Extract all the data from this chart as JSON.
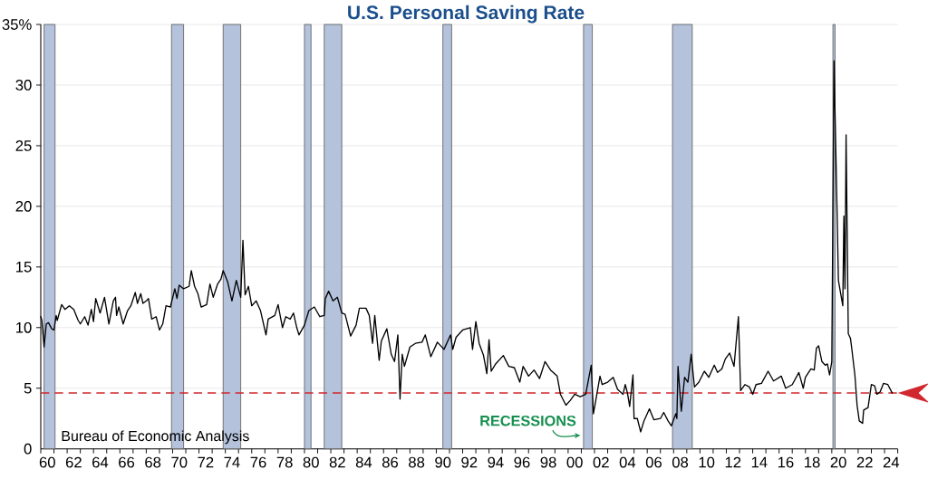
{
  "chart_data": {
    "type": "line",
    "title": "U.S. Personal Saving Rate",
    "x": [
      "1960-01",
      "1960-02",
      "1960-04",
      "1960-06",
      "1960-08",
      "1960-11",
      "1961-01",
      "1961-03",
      "1961-04",
      "1961-08",
      "1961-11",
      "1962-03",
      "1962-07",
      "1962-11",
      "1963-01",
      "1963-05",
      "1963-08",
      "1963-11",
      "1964-01",
      "1964-03",
      "1964-07",
      "1964-11",
      "1965-03",
      "1965-07",
      "1965-09",
      "1965-10",
      "1965-12",
      "1966-04",
      "1966-08",
      "1966-11",
      "1967-03",
      "1967-05",
      "1967-08",
      "1967-10",
      "1968-01",
      "1968-03",
      "1968-06",
      "1968-10",
      "1969-01",
      "1969-04",
      "1969-07",
      "1969-11",
      "1970-03",
      "1970-05",
      "1970-07",
      "1970-11",
      "1971-04",
      "1971-06",
      "1971-09",
      "1971-12",
      "1972-03",
      "1972-08",
      "1972-11",
      "1973-02",
      "1973-06",
      "1973-09",
      "1973-11",
      "1974-03",
      "1974-07",
      "1974-11",
      "1975-03",
      "1975-05",
      "1975-07",
      "1975-10",
      "1976-01",
      "1976-05",
      "1976-09",
      "1977-02",
      "1977-04",
      "1977-10",
      "1978-01",
      "1978-05",
      "1978-08",
      "1978-12",
      "1979-03",
      "1979-06",
      "1979-08",
      "1980-01",
      "1980-05",
      "1980-10",
      "1981-03",
      "1981-07",
      "1981-08",
      "1981-11",
      "1982-03",
      "1982-07",
      "1982-11",
      "1983-02",
      "1983-07",
      "1983-12",
      "1984-03",
      "1984-09",
      "1984-12",
      "1985-03",
      "1985-05",
      "1985-09",
      "1985-11",
      "1986-04",
      "1986-08",
      "1986-11",
      "1987-02",
      "1987-04",
      "1987-06",
      "1987-08",
      "1988-01",
      "1988-06",
      "1988-12",
      "1989-03",
      "1989-08",
      "1990-02",
      "1990-08",
      "1991-02",
      "1991-04",
      "1991-07",
      "1992-01",
      "1992-08",
      "1992-10",
      "1993-01",
      "1993-04",
      "1993-08",
      "1993-11",
      "1994-01",
      "1994-03",
      "1994-07",
      "1995-02",
      "1995-07",
      "1995-12",
      "1996-05",
      "1996-08",
      "1997-01",
      "1997-06",
      "1997-11",
      "1998-04",
      "1998-09",
      "1999-03",
      "1999-06",
      "1999-11",
      "2000-03",
      "2000-07",
      "2000-12",
      "2001-05",
      "2001-10",
      "2001-12",
      "2002-02",
      "2002-06",
      "2002-08",
      "2003-01",
      "2003-06",
      "2003-10",
      "2004-03",
      "2004-05",
      "2004-07",
      "2004-09",
      "2004-12",
      "2005-01",
      "2005-04",
      "2005-07",
      "2005-10",
      "2006-03",
      "2006-07",
      "2007-01",
      "2007-04",
      "2007-08",
      "2007-11",
      "2008-03",
      "2008-04",
      "2008-05",
      "2008-08",
      "2008-11",
      "2009-02",
      "2009-05",
      "2009-08",
      "2009-12",
      "2010-05",
      "2010-09",
      "2011-02",
      "2011-05",
      "2011-09",
      "2011-12",
      "2012-04",
      "2012-08",
      "2012-12",
      "2013-02",
      "2013-06",
      "2013-10",
      "2014-01",
      "2014-04",
      "2014-09",
      "2015-03",
      "2015-08",
      "2016-03",
      "2016-07",
      "2017-01",
      "2017-07",
      "2017-11",
      "2018-01",
      "2018-06",
      "2018-09",
      "2018-11",
      "2019-01",
      "2019-04",
      "2019-07",
      "2019-09",
      "2019-11",
      "2020-01",
      "2020-03",
      "2020-06",
      "2020-07",
      "2020-11",
      "2020-12",
      "2021-01",
      "2021-02",
      "2021-04",
      "2021-06",
      "2021-07",
      "2021-10",
      "2021-12",
      "2022-02",
      "2022-05",
      "2022-06",
      "2022-10",
      "2023-01",
      "2023-04",
      "2023-06",
      "2023-09",
      "2023-12",
      "2024-04",
      "2024-08"
    ],
    "values": [
      10.9,
      10.6,
      8.4,
      10.3,
      10.4,
      9.9,
      9.8,
      11.0,
      10.6,
      11.9,
      11.5,
      11.8,
      11.5,
      10.6,
      10.3,
      10.9,
      10.2,
      11.5,
      10.5,
      12.4,
      11.2,
      12.5,
      10.3,
      12.2,
      12.5,
      11.0,
      11.7,
      10.3,
      11.4,
      11.8,
      12.9,
      12.0,
      12.8,
      12.0,
      12.2,
      12.4,
      10.7,
      10.9,
      9.8,
      10.3,
      11.8,
      11.7,
      13.2,
      12.4,
      13.5,
      13.2,
      13.4,
      14.7,
      13.4,
      12.8,
      11.7,
      11.9,
      13.6,
      12.5,
      13.6,
      14.0,
      14.7,
      13.8,
      12.2,
      13.9,
      12.5,
      17.2,
      12.7,
      13.4,
      11.8,
      12.2,
      11.4,
      9.4,
      10.7,
      11.0,
      11.9,
      10.0,
      10.9,
      10.7,
      11.2,
      10.0,
      9.4,
      10.2,
      11.4,
      11.7,
      10.9,
      11.0,
      12.4,
      13.0,
      12.2,
      12.5,
      11.2,
      11.1,
      9.3,
      10.2,
      11.6,
      11.6,
      11.0,
      8.7,
      11.0,
      7.3,
      8.9,
      9.9,
      7.8,
      7.2,
      9.4,
      4.1,
      7.8,
      6.8,
      8.4,
      8.7,
      8.8,
      9.4,
      7.6,
      8.8,
      8.2,
      9.4,
      8.2,
      9.2,
      9.8,
      10.0,
      8.2,
      10.5,
      8.7,
      7.7,
      6.2,
      9.0,
      6.4,
      7.0,
      7.7,
      6.8,
      6.7,
      5.5,
      6.8,
      6.0,
      6.5,
      5.8,
      7.2,
      6.5,
      6.0,
      4.5,
      3.6,
      4.0,
      4.5,
      4.3,
      4.5,
      6.9,
      2.9,
      3.9,
      6.0,
      5.3,
      5.5,
      5.9,
      4.9,
      4.5,
      5.3,
      4.6,
      3.5,
      6.1,
      2.5,
      2.5,
      1.4,
      2.3,
      3.3,
      2.4,
      2.5,
      3.0,
      2.3,
      1.9,
      2.9,
      2.5,
      6.8,
      3.1,
      5.9,
      5.5,
      7.8,
      5.1,
      5.5,
      6.4,
      5.9,
      6.9,
      6.3,
      6.6,
      7.4,
      7.9,
      6.8,
      10.9,
      4.8,
      5.3,
      5.1,
      4.5,
      5.3,
      5.4,
      6.4,
      5.6,
      6.0,
      5.0,
      5.3,
      6.3,
      5.0,
      5.9,
      6.6,
      6.5,
      8.3,
      8.5,
      7.2,
      6.9,
      7.0,
      6.1,
      7.2,
      32.0,
      18.6,
      13.9,
      11.8,
      19.2,
      13.2,
      25.9,
      9.5,
      9.1,
      8.4,
      6.1,
      3.6,
      2.3,
      2.1,
      3.2,
      3.4,
      5.3,
      5.2,
      4.5,
      4.7,
      5.4,
      5.3,
      4.6
    ],
    "color": "#000000",
    "xlim": [
      "1960-01",
      "2025-01"
    ],
    "xticks": [
      {
        "value": "1960-01",
        "label": null
      },
      {
        "value": "1960-07",
        "label": "60"
      },
      {
        "value": "1961-01",
        "label": null
      },
      {
        "value": "1962-01",
        "label": null
      },
      {
        "value": "1962-07",
        "label": "62"
      },
      {
        "value": "1963-01",
        "label": null
      },
      {
        "value": "1964-01",
        "label": null
      },
      {
        "value": "1964-07",
        "label": "64"
      },
      {
        "value": "1965-01",
        "label": null
      },
      {
        "value": "1966-01",
        "label": null
      },
      {
        "value": "1966-07",
        "label": "66"
      },
      {
        "value": "1967-01",
        "label": null
      },
      {
        "value": "1968-01",
        "label": null
      },
      {
        "value": "1968-07",
        "label": "68"
      },
      {
        "value": "1969-01",
        "label": null
      },
      {
        "value": "1970-01",
        "label": null
      },
      {
        "value": "1970-07",
        "label": "70"
      },
      {
        "value": "1971-01",
        "label": null
      },
      {
        "value": "1972-01",
        "label": null
      },
      {
        "value": "1972-07",
        "label": "72"
      },
      {
        "value": "1973-01",
        "label": null
      },
      {
        "value": "1974-01",
        "label": null
      },
      {
        "value": "1974-07",
        "label": "74"
      },
      {
        "value": "1975-01",
        "label": null
      },
      {
        "value": "1976-01",
        "label": null
      },
      {
        "value": "1976-07",
        "label": "76"
      },
      {
        "value": "1977-01",
        "label": null
      },
      {
        "value": "1978-01",
        "label": null
      },
      {
        "value": "1978-07",
        "label": "78"
      },
      {
        "value": "1979-01",
        "label": null
      },
      {
        "value": "1980-01",
        "label": null
      },
      {
        "value": "1980-07",
        "label": "80"
      },
      {
        "value": "1981-01",
        "label": null
      },
      {
        "value": "1982-01",
        "label": null
      },
      {
        "value": "1982-07",
        "label": "82"
      },
      {
        "value": "1983-01",
        "label": null
      },
      {
        "value": "1984-01",
        "label": null
      },
      {
        "value": "1984-07",
        "label": "84"
      },
      {
        "value": "1985-01",
        "label": null
      },
      {
        "value": "1986-01",
        "label": null
      },
      {
        "value": "1986-07",
        "label": "86"
      },
      {
        "value": "1987-01",
        "label": null
      },
      {
        "value": "1988-01",
        "label": null
      },
      {
        "value": "1988-07",
        "label": "88"
      },
      {
        "value": "1989-01",
        "label": null
      },
      {
        "value": "1990-01",
        "label": null
      },
      {
        "value": "1990-07",
        "label": "90"
      },
      {
        "value": "1991-01",
        "label": null
      },
      {
        "value": "1992-01",
        "label": null
      },
      {
        "value": "1992-07",
        "label": "92"
      },
      {
        "value": "1993-01",
        "label": null
      },
      {
        "value": "1994-01",
        "label": null
      },
      {
        "value": "1994-07",
        "label": "94"
      },
      {
        "value": "1995-01",
        "label": null
      },
      {
        "value": "1996-01",
        "label": null
      },
      {
        "value": "1996-07",
        "label": "96"
      },
      {
        "value": "1997-01",
        "label": null
      },
      {
        "value": "1998-01",
        "label": null
      },
      {
        "value": "1998-07",
        "label": "98"
      },
      {
        "value": "1999-01",
        "label": null
      },
      {
        "value": "2000-01",
        "label": null
      },
      {
        "value": "2000-07",
        "label": "00"
      },
      {
        "value": "2001-01",
        "label": null
      },
      {
        "value": "2002-01",
        "label": null
      },
      {
        "value": "2002-07",
        "label": "02"
      },
      {
        "value": "2003-01",
        "label": null
      },
      {
        "value": "2004-01",
        "label": null
      },
      {
        "value": "2004-07",
        "label": "04"
      },
      {
        "value": "2005-01",
        "label": null
      },
      {
        "value": "2006-01",
        "label": null
      },
      {
        "value": "2006-07",
        "label": "06"
      },
      {
        "value": "2007-01",
        "label": null
      },
      {
        "value": "2008-01",
        "label": null
      },
      {
        "value": "2008-07",
        "label": "08"
      },
      {
        "value": "2009-01",
        "label": null
      },
      {
        "value": "2010-01",
        "label": null
      },
      {
        "value": "2010-07",
        "label": "10"
      },
      {
        "value": "2011-01",
        "label": null
      },
      {
        "value": "2012-01",
        "label": null
      },
      {
        "value": "2012-07",
        "label": "12"
      },
      {
        "value": "2013-01",
        "label": null
      },
      {
        "value": "2014-01",
        "label": null
      },
      {
        "value": "2014-07",
        "label": "14"
      },
      {
        "value": "2015-01",
        "label": null
      },
      {
        "value": "2016-01",
        "label": null
      },
      {
        "value": "2016-07",
        "label": "16"
      },
      {
        "value": "2017-01",
        "label": null
      },
      {
        "value": "2018-01",
        "label": null
      },
      {
        "value": "2018-07",
        "label": "18"
      },
      {
        "value": "2019-01",
        "label": null
      },
      {
        "value": "2020-01",
        "label": null
      },
      {
        "value": "2020-07",
        "label": "20"
      },
      {
        "value": "2021-01",
        "label": null
      },
      {
        "value": "2022-01",
        "label": null
      },
      {
        "value": "2022-07",
        "label": "22"
      },
      {
        "value": "2023-01",
        "label": null
      },
      {
        "value": "2024-01",
        "label": null
      },
      {
        "value": "2024-07",
        "label": "24"
      },
      {
        "value": "2025-01",
        "label": null
      }
    ],
    "ylim": [
      0,
      35
    ],
    "yticks": [
      0,
      5,
      10,
      15,
      20,
      25,
      30,
      {
        "value": 35,
        "label": "35%"
      }
    ],
    "grid": "y",
    "bands": [
      {
        "axis": "x",
        "from": "1960-04",
        "to": "1961-02",
        "color": "#b4c2dc"
      },
      {
        "axis": "x",
        "from": "1969-12",
        "to": "1970-11",
        "color": "#b4c2dc"
      },
      {
        "axis": "x",
        "from": "1973-11",
        "to": "1975-03",
        "color": "#b4c2dc"
      },
      {
        "axis": "x",
        "from": "1980-01",
        "to": "1980-07",
        "color": "#b4c2dc"
      },
      {
        "axis": "x",
        "from": "1981-07",
        "to": "1982-11",
        "color": "#b4c2dc"
      },
      {
        "axis": "x",
        "from": "1990-07",
        "to": "1991-03",
        "color": "#b4c2dc"
      },
      {
        "axis": "x",
        "from": "2001-03",
        "to": "2001-11",
        "color": "#b4c2dc"
      },
      {
        "axis": "x",
        "from": "2007-12",
        "to": "2009-06",
        "color": "#b4c2dc"
      },
      {
        "axis": "x",
        "from": "2020-02",
        "to": "2020-04",
        "color": "#b4c2dc"
      }
    ],
    "ref_lines": [
      {
        "axis": "y",
        "value": 4.6,
        "color": "#d0282e",
        "line_style": "dashed"
      }
    ],
    "annotations": [
      "Bureau of Economic Analysis",
      {
        "text": "RECESSIONS",
        "x": "2001-03",
        "y": 1.1
      }
    ]
  }
}
